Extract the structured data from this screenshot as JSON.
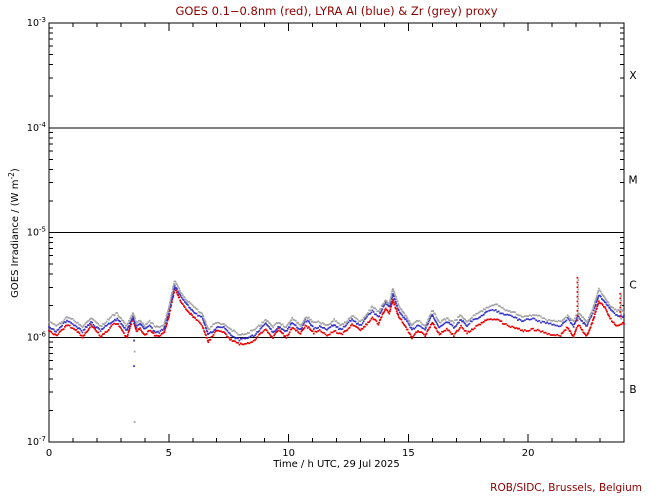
{
  "page": {
    "title": "GOES 0.1−0.8nm (red), LYRA Al (blue) & Zr (grey) proxy",
    "footer": "ROB/SIDC, Brussels, Belgium",
    "accent_color": "#8b0000",
    "background_color": "#ffffff"
  },
  "chart_data": {
    "type": "line",
    "title": "GOES 0.1−0.8nm (red), LYRA Al (blue) & Zr (grey) proxy",
    "xlabel": "Time / h UTC, 29 Jul 2025",
    "ylabel_pre": "GOES Irradiance / (W m",
    "ylabel_sup": "-2",
    "ylabel_post": ")",
    "x_range_hours": [
      0,
      24
    ],
    "x_major_ticks": [
      0,
      5,
      10,
      15,
      20
    ],
    "x_minor_step_hours": 1,
    "y_scale": "log",
    "y_range_exponents": [
      -7,
      -3
    ],
    "y_ticks": [
      {
        "base": "10",
        "exp": "-3"
      },
      {
        "base": "10",
        "exp": "-4"
      },
      {
        "base": "10",
        "exp": "-5"
      },
      {
        "base": "10",
        "exp": "-6"
      },
      {
        "base": "10",
        "exp": "-7"
      }
    ],
    "grid": "off",
    "class_boundary_exponents": [
      -4,
      -5,
      -6
    ],
    "flare_class_labels": [
      {
        "label": "X",
        "band_mid_exp": -3.5
      },
      {
        "label": "M",
        "band_mid_exp": -4.5
      },
      {
        "label": "C",
        "band_mid_exp": -5.5
      },
      {
        "label": "B",
        "band_mid_exp": -6.5
      }
    ],
    "value_unit": "1e-6 W m-2",
    "x": [
      0.0,
      0.3,
      0.75,
      1.1,
      1.4,
      1.75,
      2.15,
      2.65,
      2.85,
      3.25,
      3.5,
      3.65,
      3.8,
      4.0,
      4.2,
      4.45,
      4.6,
      4.8,
      5.0,
      5.25,
      5.5,
      5.8,
      6.1,
      6.4,
      6.65,
      7.0,
      7.3,
      7.6,
      7.95,
      8.3,
      8.6,
      9.05,
      9.35,
      9.6,
      9.9,
      10.15,
      10.5,
      10.7,
      10.85,
      11.05,
      11.3,
      11.6,
      11.9,
      12.2,
      12.65,
      13.0,
      13.5,
      13.75,
      14.05,
      14.2,
      14.35,
      14.6,
      14.9,
      15.15,
      15.4,
      15.7,
      16.0,
      16.3,
      16.6,
      16.9,
      17.2,
      17.45,
      17.65,
      17.95,
      18.3,
      18.65,
      19.0,
      19.4,
      19.8,
      20.2,
      20.6,
      21.0,
      21.35,
      21.65,
      21.9,
      22.02,
      22.07,
      22.12,
      22.3,
      22.45,
      22.7,
      22.95,
      23.2,
      23.45,
      23.7,
      23.85,
      24.0
    ],
    "series": [
      {
        "name": "GOES 0.1-0.8nm",
        "color": "#e60000",
        "values_1e6": [
          1.15,
          1.02,
          1.33,
          1.18,
          1.0,
          1.3,
          1.02,
          1.3,
          1.35,
          1.0,
          1.5,
          1.12,
          1.22,
          1.05,
          1.18,
          1.02,
          1.02,
          1.1,
          1.6,
          2.9,
          2.2,
          1.8,
          1.5,
          1.3,
          0.92,
          1.15,
          1.12,
          0.95,
          0.85,
          0.88,
          0.95,
          1.2,
          1.0,
          1.18,
          1.0,
          1.25,
          1.07,
          1.28,
          1.25,
          1.1,
          1.15,
          1.05,
          1.15,
          1.05,
          1.33,
          1.15,
          1.55,
          1.33,
          1.9,
          1.7,
          2.3,
          1.55,
          1.25,
          1.0,
          1.15,
          1.03,
          1.4,
          1.05,
          1.2,
          1.05,
          1.25,
          1.1,
          1.2,
          1.3,
          1.48,
          1.5,
          1.33,
          1.25,
          1.14,
          1.2,
          1.12,
          1.06,
          1.03,
          1.25,
          1.02,
          1.25,
          1.27,
          1.3,
          1.11,
          1.02,
          1.45,
          2.2,
          1.9,
          1.5,
          1.3,
          1.32,
          1.35
        ]
      },
      {
        "name": "LYRA Al proxy",
        "color": "#3434c8",
        "values_1e6": [
          1.28,
          1.15,
          1.43,
          1.3,
          1.12,
          1.4,
          1.15,
          1.42,
          1.5,
          1.15,
          1.58,
          1.25,
          1.35,
          1.18,
          1.28,
          1.13,
          1.12,
          1.2,
          1.75,
          3.15,
          2.45,
          2.0,
          1.7,
          1.55,
          1.05,
          1.25,
          1.22,
          1.05,
          0.95,
          0.98,
          1.07,
          1.36,
          1.12,
          1.28,
          1.12,
          1.38,
          1.18,
          1.43,
          1.4,
          1.22,
          1.28,
          1.18,
          1.33,
          1.18,
          1.48,
          1.3,
          1.78,
          1.58,
          2.12,
          1.92,
          2.6,
          1.8,
          1.45,
          1.18,
          1.3,
          1.18,
          1.65,
          1.25,
          1.4,
          1.25,
          1.48,
          1.28,
          1.42,
          1.55,
          1.77,
          1.8,
          1.66,
          1.55,
          1.43,
          1.5,
          1.4,
          1.3,
          1.28,
          1.5,
          1.27,
          1.5,
          1.6,
          1.55,
          1.39,
          1.28,
          1.7,
          2.55,
          2.2,
          1.8,
          1.62,
          1.6,
          1.6
        ]
      },
      {
        "name": "LYRA Zr proxy",
        "color": "#a2a2a2",
        "values_1e6": [
          1.4,
          1.27,
          1.55,
          1.42,
          1.25,
          1.52,
          1.28,
          1.58,
          1.7,
          1.28,
          1.68,
          1.38,
          1.48,
          1.3,
          1.4,
          1.26,
          1.25,
          1.33,
          1.9,
          3.45,
          2.7,
          2.2,
          1.88,
          1.7,
          1.18,
          1.38,
          1.35,
          1.17,
          1.06,
          1.1,
          1.18,
          1.48,
          1.25,
          1.4,
          1.25,
          1.5,
          1.3,
          1.55,
          1.52,
          1.35,
          1.4,
          1.3,
          1.45,
          1.3,
          1.6,
          1.42,
          1.94,
          1.73,
          2.3,
          2.1,
          2.9,
          2.0,
          1.6,
          1.3,
          1.43,
          1.3,
          1.8,
          1.38,
          1.53,
          1.38,
          1.62,
          1.41,
          1.56,
          1.7,
          1.95,
          2.05,
          1.85,
          1.7,
          1.57,
          1.64,
          1.53,
          1.43,
          1.4,
          1.62,
          1.4,
          1.62,
          1.65,
          1.68,
          1.52,
          1.4,
          1.85,
          2.85,
          2.4,
          1.97,
          1.77,
          1.8,
          1.75
        ]
      }
    ],
    "artifacts": [
      {
        "kind": "dropout-dots",
        "t": 3.55,
        "points": [
          {
            "v_1e6": 0.93,
            "series": "LYRA Al proxy"
          },
          {
            "v_1e6": 0.73,
            "series": "LYRA Zr proxy"
          },
          {
            "v_1e6": 0.53,
            "series": "LYRA Al proxy"
          },
          {
            "v_1e6": 0.155,
            "series": "LYRA Zr proxy"
          }
        ]
      },
      {
        "kind": "spike-column",
        "t": 22.07,
        "v_min_1e6": 1.45,
        "v_max_1e6": 3.7,
        "series": [
          "GOES 0.1-0.8nm",
          "LYRA Zr proxy"
        ]
      },
      {
        "kind": "spike-column",
        "t": 23.86,
        "v_min_1e6": 1.5,
        "v_max_1e6": 2.6,
        "series": [
          "GOES 0.1-0.8nm",
          "LYRA Zr proxy"
        ]
      }
    ]
  }
}
